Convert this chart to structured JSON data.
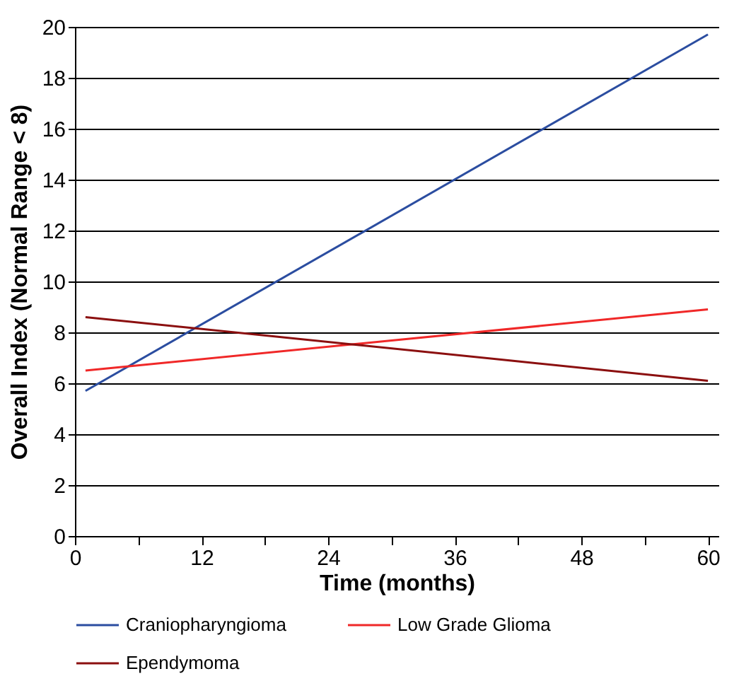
{
  "chart_data": {
    "type": "line",
    "xlabel": "Time (months)",
    "ylabel": "Overall Index (Normal Range < 8)",
    "x": [
      1,
      60
    ],
    "series": [
      {
        "name": "Craniopharyngioma",
        "color": "#2b4da0",
        "values": [
          5.7,
          19.7
        ]
      },
      {
        "name": "Low Grade Glioma",
        "color": "#f02828",
        "values": [
          6.5,
          8.9
        ]
      },
      {
        "name": "Ependymoma",
        "color": "#8b0f0f",
        "values": [
          8.6,
          6.1
        ]
      }
    ],
    "xlim": [
      0,
      61
    ],
    "xticks": [
      0,
      {
        "value": 6,
        "label": null
      },
      12,
      {
        "value": 18,
        "label": null
      },
      24,
      {
        "value": 30,
        "label": null
      },
      36,
      {
        "value": 42,
        "label": null
      },
      48,
      {
        "value": 54,
        "label": null
      },
      60
    ],
    "ylim": [
      0,
      20
    ],
    "yticks": [
      0,
      2,
      4,
      6,
      8,
      10,
      12,
      14,
      16,
      18,
      20
    ],
    "grid": "y",
    "legend": "bottom",
    "marker": "none",
    "line_style": "solid"
  }
}
